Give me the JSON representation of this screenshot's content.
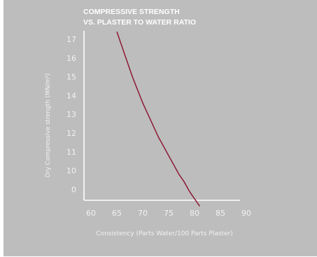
{
  "chart_data": {
    "type": "line",
    "title_lines": [
      "COMPRESSIVE STRENGTH",
      "VS. PLASTER TO WATER RATIO"
    ],
    "xlabel": "Consistency (Parts Water/100 Parts Plaster)",
    "ylabel": "Dry Compressive strength (MN/m²)",
    "x_ticks": [
      "60",
      "65",
      "70",
      "75",
      "80",
      "85",
      "90"
    ],
    "x_tick_values": [
      60,
      65,
      70,
      75,
      80,
      85,
      90
    ],
    "y_ticks": [
      "0",
      "10",
      "11",
      "12",
      "13",
      "14",
      "15",
      "16",
      "17"
    ],
    "xlim": [
      60,
      90
    ],
    "grid": false,
    "series": [
      {
        "color": "#8b1a35",
        "x": [
          65.0,
          66.0,
          67.0,
          68.0,
          69.0,
          70.0,
          71.0,
          72.0,
          73.0,
          74.0,
          75.0,
          76.0,
          77.0,
          78.0,
          79.0,
          80.0,
          81.0
        ],
        "y_tick_position": [
          17.4,
          16.6,
          15.8,
          15.0,
          14.3,
          13.6,
          13.0,
          12.4,
          11.8,
          11.3,
          10.8,
          10.3,
          9.8,
          9.4,
          8.9,
          8.5,
          8.1
        ]
      }
    ]
  }
}
